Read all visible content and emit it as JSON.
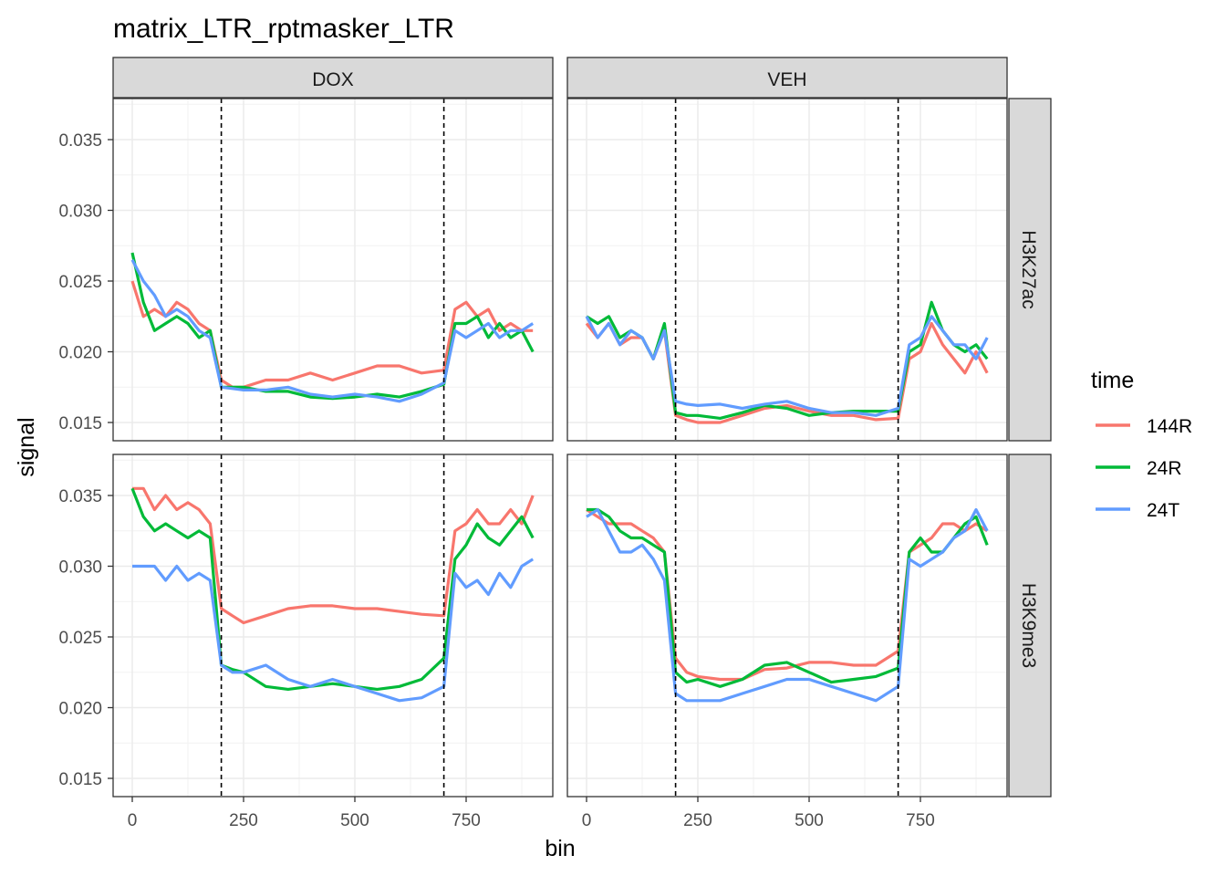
{
  "chart_data": {
    "type": "line",
    "title": "matrix_LTR_rptmasker_LTR",
    "xlabel": "bin",
    "ylabel": "signal",
    "xlim": [
      -45,
      945
    ],
    "ylim": [
      0.0137,
      0.0379
    ],
    "x_ticks": [
      0,
      250,
      500,
      750
    ],
    "x_tick_labels": [
      "0",
      "250",
      "500",
      "750"
    ],
    "y_ticks": [
      0.015,
      0.02,
      0.025,
      0.03,
      0.035
    ],
    "y_tick_labels": [
      "0.015",
      "0.020",
      "0.025",
      "0.030",
      "0.035"
    ],
    "grid": true,
    "vlines": [
      200,
      700
    ],
    "col_facets": [
      "DOX",
      "VEH"
    ],
    "row_facets": [
      "H3K27ac",
      "H3K9me3"
    ],
    "legend": {
      "title": "time",
      "position": "right",
      "entries": [
        {
          "label": "144R",
          "color": "#F8766D"
        },
        {
          "label": "24R",
          "color": "#00BA38"
        },
        {
          "label": "24T",
          "color": "#619CFF"
        }
      ]
    },
    "x": [
      0,
      25,
      50,
      75,
      100,
      125,
      150,
      175,
      200,
      225,
      250,
      300,
      350,
      400,
      450,
      500,
      550,
      600,
      650,
      700,
      725,
      750,
      775,
      800,
      825,
      850,
      875,
      900
    ],
    "panels": [
      {
        "col": "DOX",
        "row": "H3K27ac",
        "series": [
          {
            "name": "144R",
            "values": [
              0.025,
              0.0225,
              0.023,
              0.0225,
              0.0235,
              0.023,
              0.022,
              0.0215,
              0.018,
              0.0175,
              0.0175,
              0.018,
              0.018,
              0.0185,
              0.018,
              0.0185,
              0.019,
              0.019,
              0.0185,
              0.0187,
              0.023,
              0.0235,
              0.0225,
              0.023,
              0.0215,
              0.022,
              0.0215,
              0.0215
            ]
          },
          {
            "name": "24R",
            "values": [
              0.027,
              0.0235,
              0.0215,
              0.022,
              0.0225,
              0.022,
              0.021,
              0.0215,
              0.0175,
              0.0175,
              0.0175,
              0.0172,
              0.0172,
              0.0168,
              0.0167,
              0.0168,
              0.017,
              0.0168,
              0.0172,
              0.0177,
              0.022,
              0.022,
              0.0225,
              0.021,
              0.022,
              0.021,
              0.0215,
              0.02
            ]
          },
          {
            "name": "24T",
            "values": [
              0.0265,
              0.025,
              0.024,
              0.0225,
              0.023,
              0.0225,
              0.0215,
              0.021,
              0.0175,
              0.0174,
              0.0173,
              0.0173,
              0.0175,
              0.017,
              0.0168,
              0.017,
              0.0168,
              0.0165,
              0.017,
              0.0178,
              0.0215,
              0.021,
              0.0215,
              0.022,
              0.021,
              0.0215,
              0.0215,
              0.022
            ]
          }
        ]
      },
      {
        "col": "VEH",
        "row": "H3K27ac",
        "series": [
          {
            "name": "144R",
            "values": [
              0.022,
              0.021,
              0.022,
              0.0205,
              0.021,
              0.021,
              0.0195,
              0.0215,
              0.0155,
              0.0152,
              0.015,
              0.015,
              0.0155,
              0.016,
              0.0162,
              0.0158,
              0.0155,
              0.0155,
              0.0152,
              0.0153,
              0.0195,
              0.02,
              0.022,
              0.0205,
              0.0195,
              0.0185,
              0.02,
              0.0185
            ]
          },
          {
            "name": "24R",
            "values": [
              0.0225,
              0.022,
              0.0225,
              0.021,
              0.0215,
              0.021,
              0.0195,
              0.022,
              0.0157,
              0.0155,
              0.0155,
              0.0153,
              0.0157,
              0.0162,
              0.016,
              0.0155,
              0.0157,
              0.0158,
              0.0158,
              0.0158,
              0.02,
              0.0205,
              0.0235,
              0.0215,
              0.0205,
              0.02,
              0.0205,
              0.0195
            ]
          },
          {
            "name": "24T",
            "values": [
              0.0225,
              0.021,
              0.022,
              0.0205,
              0.0215,
              0.021,
              0.0195,
              0.0215,
              0.0165,
              0.0163,
              0.0162,
              0.0163,
              0.016,
              0.0163,
              0.0165,
              0.016,
              0.0157,
              0.0157,
              0.0155,
              0.016,
              0.0205,
              0.021,
              0.0225,
              0.0215,
              0.0205,
              0.0205,
              0.0195,
              0.021
            ]
          }
        ]
      },
      {
        "col": "DOX",
        "row": "H3K9me3",
        "series": [
          {
            "name": "144R",
            "values": [
              0.0355,
              0.0355,
              0.034,
              0.035,
              0.034,
              0.0345,
              0.034,
              0.033,
              0.027,
              0.0265,
              0.026,
              0.0265,
              0.027,
              0.0272,
              0.0272,
              0.027,
              0.027,
              0.0268,
              0.0266,
              0.0265,
              0.0325,
              0.033,
              0.034,
              0.033,
              0.033,
              0.034,
              0.033,
              0.035
            ]
          },
          {
            "name": "24R",
            "values": [
              0.0355,
              0.0335,
              0.0325,
              0.033,
              0.0325,
              0.032,
              0.0325,
              0.032,
              0.023,
              0.0227,
              0.0225,
              0.0215,
              0.0213,
              0.0215,
              0.0217,
              0.0215,
              0.0213,
              0.0215,
              0.022,
              0.0235,
              0.0305,
              0.0315,
              0.033,
              0.032,
              0.0315,
              0.0325,
              0.0335,
              0.032
            ]
          },
          {
            "name": "24T",
            "values": [
              0.03,
              0.03,
              0.03,
              0.029,
              0.03,
              0.029,
              0.0295,
              0.029,
              0.023,
              0.0225,
              0.0225,
              0.023,
              0.022,
              0.0215,
              0.022,
              0.0215,
              0.021,
              0.0205,
              0.0207,
              0.0215,
              0.0295,
              0.0285,
              0.029,
              0.028,
              0.0295,
              0.0285,
              0.03,
              0.0305
            ]
          }
        ]
      },
      {
        "col": "VEH",
        "row": "H3K9me3",
        "series": [
          {
            "name": "144R",
            "values": [
              0.034,
              0.0335,
              0.033,
              0.033,
              0.033,
              0.0325,
              0.032,
              0.031,
              0.0235,
              0.0225,
              0.0222,
              0.022,
              0.022,
              0.0227,
              0.0228,
              0.0232,
              0.0232,
              0.023,
              0.023,
              0.024,
              0.031,
              0.0315,
              0.032,
              0.033,
              0.033,
              0.0325,
              0.033,
              0.0325
            ]
          },
          {
            "name": "24R",
            "values": [
              0.034,
              0.034,
              0.0335,
              0.0325,
              0.032,
              0.032,
              0.0315,
              0.031,
              0.0225,
              0.0218,
              0.022,
              0.0215,
              0.022,
              0.023,
              0.0232,
              0.0225,
              0.0218,
              0.022,
              0.0222,
              0.0228,
              0.031,
              0.032,
              0.031,
              0.031,
              0.032,
              0.033,
              0.0335,
              0.0315
            ]
          },
          {
            "name": "24T",
            "values": [
              0.0335,
              0.034,
              0.0325,
              0.031,
              0.031,
              0.0315,
              0.0305,
              0.029,
              0.021,
              0.0205,
              0.0205,
              0.0205,
              0.021,
              0.0215,
              0.022,
              0.022,
              0.0215,
              0.021,
              0.0205,
              0.0215,
              0.0305,
              0.03,
              0.0305,
              0.031,
              0.032,
              0.0325,
              0.034,
              0.0325
            ]
          }
        ]
      }
    ]
  }
}
